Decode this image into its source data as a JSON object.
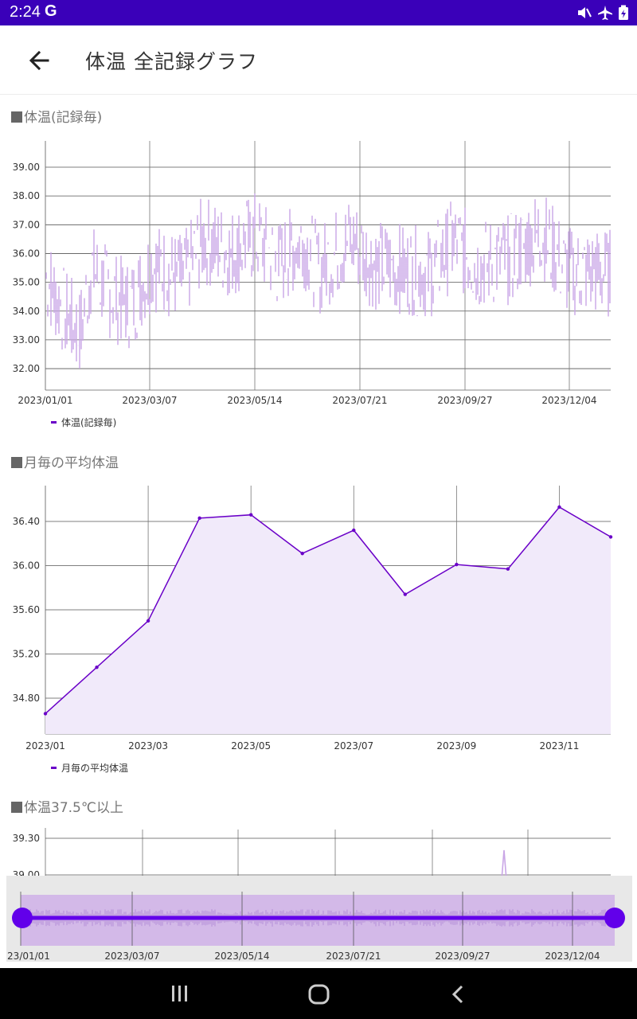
{
  "status_bar": {
    "time": "2:24",
    "g_label": "G",
    "icons": [
      "mute-icon",
      "airplane-icon",
      "battery-icon"
    ]
  },
  "header": {
    "title": "体温 全記録グラフ"
  },
  "colors": {
    "accent": "#6a00c8",
    "status_bar": "#3a00b9",
    "fill": "#c9a6e6"
  },
  "sections": {
    "s1": {
      "title": "体温(記録毎)",
      "legend": "体温(記録毎)"
    },
    "s2": {
      "title": "月毎の平均体温",
      "legend": "月毎の平均体温"
    },
    "s3": {
      "title": "体温37.5℃以上"
    }
  },
  "chart_data": [
    {
      "type": "line",
      "title": "体温(記録毎)",
      "x_tick_labels": [
        "2023/01/01",
        "2023/03/07",
        "2023/05/14",
        "2023/07/21",
        "2023/09/27",
        "2023/12/04"
      ],
      "y_tick_labels": [
        "39.00",
        "38.00",
        "37.00",
        "36.00",
        "35.00",
        "34.00",
        "33.00",
        "32.00"
      ],
      "ylim": [
        31.6,
        39.9
      ],
      "grid": true,
      "legend": "bottom-left",
      "series": [
        {
          "name": "体温(記録毎)",
          "summary": "daily readings from 2023/01/01 to 2023/12/25"
        }
      ]
    },
    {
      "type": "area",
      "title": "月毎の平均体温",
      "categories": [
        "2023/01",
        "2023/02",
        "2023/03",
        "2023/04",
        "2023/05",
        "2023/06",
        "2023/07",
        "2023/08",
        "2023/09",
        "2023/10",
        "2023/11",
        "2023/12"
      ],
      "x_tick_labels": [
        "2023/01",
        "2023/03",
        "2023/05",
        "2023/07",
        "2023/09",
        "2023/11"
      ],
      "y_tick_labels": [
        "36.40",
        "36.00",
        "35.60",
        "35.20",
        "34.80"
      ],
      "ylim": [
        34.5,
        36.83
      ],
      "grid": true,
      "legend": "bottom-left",
      "series": [
        {
          "name": "月毎の平均体温",
          "values": [
            34.66,
            35.08,
            35.5,
            36.43,
            36.46,
            36.11,
            36.32,
            35.74,
            36.01,
            35.97,
            36.53,
            36.26
          ]
        }
      ]
    },
    {
      "type": "line",
      "title": "体温37.5℃以上",
      "y_tick_labels": [
        "39.30",
        "39.00"
      ],
      "partially_visible": true
    }
  ],
  "range_selector": {
    "tick_labels": [
      "23/01/01",
      "2023/03/07",
      "2023/05/14",
      "2023/07/21",
      "2023/09/27",
      "2023/12/04"
    ]
  }
}
